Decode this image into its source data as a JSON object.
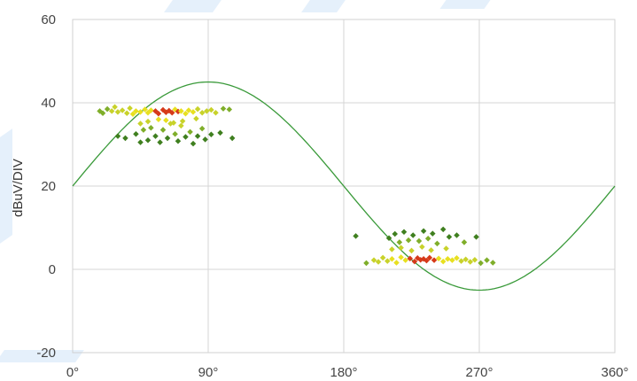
{
  "chart_data": {
    "type": "scatter",
    "title": "",
    "xlabel": "",
    "ylabel": "dBuV/DIV",
    "xlim": [
      0,
      360
    ],
    "ylim": [
      -20,
      60
    ],
    "x_ticks": [
      0,
      90,
      180,
      270,
      360
    ],
    "x_tick_labels": [
      "0°",
      "90°",
      "180°",
      "270°",
      "360°"
    ],
    "y_ticks": [
      -20,
      0,
      20,
      40,
      60
    ],
    "y_tick_labels": [
      "-20",
      "0",
      "20",
      "40",
      "60"
    ],
    "grid": true,
    "legend": "none",
    "reference_curve": {
      "shape": "sine",
      "offset": 20,
      "amplitude": 25,
      "x_domain": [
        0,
        360
      ],
      "color": "#3a9a3a"
    },
    "density_colors": {
      "low": "#3f7f1f",
      "medium_low": "#7fae2a",
      "medium": "#c8d22a",
      "high": "#e8e020",
      "peak": "#d63a1a"
    },
    "clusters": [
      {
        "name": "",
        "x_range": [
          15,
          105
        ],
        "y_center": 37.5,
        "density_peak_x": 62,
        "density_peak_y": 37.5,
        "points": [
          [
            18,
            38
          ],
          [
            20,
            37.5
          ],
          [
            23,
            38.5
          ],
          [
            26,
            38
          ],
          [
            28,
            39
          ],
          [
            30,
            37.8
          ],
          [
            33,
            38.2
          ],
          [
            36,
            37.5
          ],
          [
            38,
            38.7
          ],
          [
            40,
            37.3
          ],
          [
            42,
            38
          ],
          [
            45,
            37.8
          ],
          [
            48,
            38.4
          ],
          [
            50,
            37.6
          ],
          [
            52,
            38.2
          ],
          [
            55,
            38
          ],
          [
            57,
            37.4
          ],
          [
            60,
            38.3
          ],
          [
            62,
            37.7
          ],
          [
            64,
            38.1
          ],
          [
            66,
            37.6
          ],
          [
            68,
            38.4
          ],
          [
            70,
            37.9
          ],
          [
            72,
            38
          ],
          [
            75,
            37.4
          ],
          [
            77,
            38.2
          ],
          [
            80,
            37.8
          ],
          [
            83,
            38.5
          ],
          [
            86,
            37.6
          ],
          [
            89,
            38
          ],
          [
            92,
            38.3
          ],
          [
            95,
            37.6
          ],
          [
            100,
            38.6
          ],
          [
            104,
            38.4
          ],
          [
            30,
            32
          ],
          [
            35,
            31.5
          ],
          [
            42,
            32.5
          ],
          [
            45,
            30.5
          ],
          [
            47,
            33.5
          ],
          [
            50,
            31
          ],
          [
            52,
            34
          ],
          [
            55,
            32
          ],
          [
            58,
            30.5
          ],
          [
            60,
            33.5
          ],
          [
            63,
            31.5
          ],
          [
            65,
            35
          ],
          [
            68,
            32.5
          ],
          [
            70,
            30.8
          ],
          [
            72,
            34.5
          ],
          [
            75,
            31.8
          ],
          [
            78,
            33
          ],
          [
            80,
            30.2
          ],
          [
            83,
            32
          ],
          [
            86,
            33.8
          ],
          [
            88,
            31.2
          ],
          [
            92,
            32.4
          ],
          [
            98,
            32.8
          ],
          [
            106,
            31.5
          ],
          [
            45,
            35
          ],
          [
            50,
            35.5
          ],
          [
            57,
            36
          ],
          [
            62,
            35.8
          ],
          [
            67,
            35.2
          ],
          [
            73,
            35.6
          ],
          [
            82,
            36.2
          ]
        ]
      },
      {
        "name": "",
        "x_range": [
          185,
          285
        ],
        "y_center": 2.5,
        "density_peak_x": 233,
        "density_peak_y": 2.5,
        "points": [
          [
            188,
            8
          ],
          [
            195,
            1.5
          ],
          [
            200,
            2.2
          ],
          [
            203,
            1.8
          ],
          [
            206,
            2.8
          ],
          [
            209,
            2
          ],
          [
            212,
            2.5
          ],
          [
            215,
            1.6
          ],
          [
            218,
            2.9
          ],
          [
            221,
            2.2
          ],
          [
            224,
            2.6
          ],
          [
            227,
            1.9
          ],
          [
            229,
            2.7
          ],
          [
            231,
            2.3
          ],
          [
            233,
            2.5
          ],
          [
            235,
            2.1
          ],
          [
            237,
            2.8
          ],
          [
            240,
            2.2
          ],
          [
            243,
            2.6
          ],
          [
            246,
            1.9
          ],
          [
            249,
            2.5
          ],
          [
            252,
            2.2
          ],
          [
            255,
            2.7
          ],
          [
            258,
            2
          ],
          [
            261,
            2.4
          ],
          [
            264,
            1.8
          ],
          [
            267,
            2.3
          ],
          [
            271,
            1.5
          ],
          [
            275,
            2.2
          ],
          [
            279,
            1.6
          ],
          [
            210,
            7.5
          ],
          [
            214,
            8.5
          ],
          [
            217,
            6.5
          ],
          [
            220,
            9
          ],
          [
            223,
            7
          ],
          [
            226,
            8.2
          ],
          [
            230,
            6.8
          ],
          [
            233,
            9.2
          ],
          [
            236,
            7.4
          ],
          [
            239,
            8.6
          ],
          [
            242,
            6.2
          ],
          [
            246,
            9.6
          ],
          [
            250,
            7.8
          ],
          [
            255,
            8.2
          ],
          [
            260,
            6.5
          ],
          [
            268,
            7.8
          ],
          [
            212,
            4.8
          ],
          [
            218,
            5.2
          ],
          [
            225,
            4.5
          ],
          [
            232,
            5.4
          ],
          [
            238,
            4.6
          ],
          [
            248,
            5
          ]
        ]
      }
    ]
  }
}
